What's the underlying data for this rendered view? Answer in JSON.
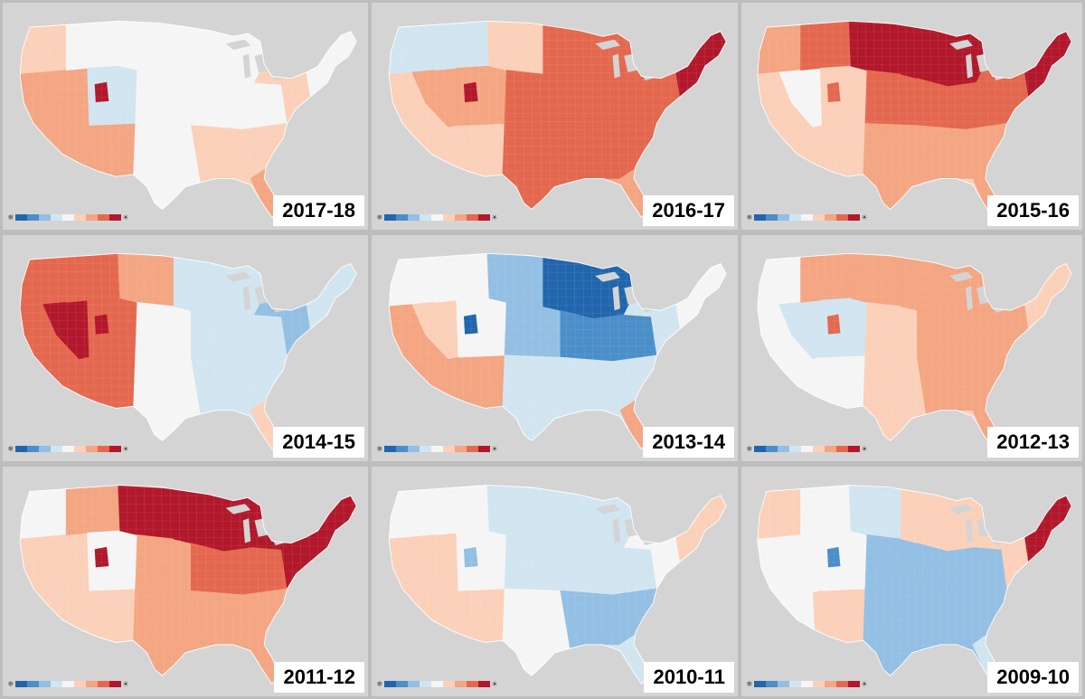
{
  "palette": {
    "B3": "#2166ac",
    "B2": "#4b8ec8",
    "B1": "#92bfe3",
    "B0": "#d1e5f0",
    "N": "#f5f5f5",
    "R0": "#fbd0b9",
    "R1": "#f4a582",
    "R2": "#e4684f",
    "R3": "#b2182b"
  },
  "legend_swatches": [
    "#2166ac",
    "#4b8ec8",
    "#92bfe3",
    "#d1e5f0",
    "#f5f5f5",
    "#fbd0b9",
    "#f4a582",
    "#e4684f",
    "#b2182b"
  ],
  "panels": [
    {
      "season": "2017-18",
      "base": "R0",
      "regions": {
        "pacific-nw": "R0",
        "california": "R1",
        "great-basin": "R1",
        "southwest": "R1",
        "northern-rockies": "N",
        "central-rockies": "B0",
        "northern-plains": "N",
        "central-plains": "N",
        "southern-plains": "N",
        "upper-midwest": "N",
        "ohio-valley": "N",
        "southeast": "R0",
        "florida": "R1",
        "mid-atlantic": "R0",
        "new-england": "N",
        "spot": "R3"
      }
    },
    {
      "season": "2016-17",
      "base": "R1",
      "regions": {
        "pacific-nw": "B0",
        "california": "R0",
        "great-basin": "R1",
        "southwest": "R0",
        "northern-rockies": "B0",
        "central-rockies": "R1",
        "northern-plains": "R0",
        "central-plains": "R2",
        "southern-plains": "R2",
        "upper-midwest": "R2",
        "ohio-valley": "R2",
        "southeast": "R2",
        "florida": "R1",
        "mid-atlantic": "R2",
        "new-england": "R3",
        "spot": "R3"
      }
    },
    {
      "season": "2015-16",
      "base": "R0",
      "regions": {
        "pacific-nw": "R1",
        "california": "R0",
        "great-basin": "N",
        "southwest": "R0",
        "northern-rockies": "R2",
        "central-rockies": "R0",
        "northern-plains": "R3",
        "central-plains": "R2",
        "southern-plains": "R1",
        "upper-midwest": "R3",
        "ohio-valley": "R2",
        "southeast": "R1",
        "florida": "R1",
        "mid-atlantic": "R2",
        "new-england": "R3",
        "spot": "R2"
      }
    },
    {
      "season": "2014-15",
      "base": "B0",
      "regions": {
        "pacific-nw": "R2",
        "california": "R2",
        "great-basin": "R3",
        "southwest": "R2",
        "northern-rockies": "R2",
        "central-rockies": "R2",
        "northern-plains": "R1",
        "central-plains": "N",
        "southern-plains": "N",
        "upper-midwest": "B0",
        "ohio-valley": "B0",
        "southeast": "B0",
        "florida": "R0",
        "mid-atlantic": "B1",
        "new-england": "B0",
        "spot": "R3"
      }
    },
    {
      "season": "2013-14",
      "base": "B0",
      "regions": {
        "pacific-nw": "N",
        "california": "R1",
        "great-basin": "R0",
        "southwest": "R1",
        "northern-rockies": "N",
        "central-rockies": "N",
        "northern-plains": "B1",
        "central-plains": "B1",
        "southern-plains": "B0",
        "upper-midwest": "B3",
        "ohio-valley": "B2",
        "southeast": "B0",
        "florida": "R1",
        "mid-atlantic": "B0",
        "new-england": "N",
        "spot": "B3"
      }
    },
    {
      "season": "2012-13",
      "base": "R0",
      "regions": {
        "pacific-nw": "N",
        "california": "N",
        "great-basin": "B0",
        "southwest": "N",
        "northern-rockies": "R1",
        "central-rockies": "B0",
        "northern-plains": "R1",
        "central-plains": "R0",
        "southern-plains": "R0",
        "upper-midwest": "R1",
        "ohio-valley": "R1",
        "southeast": "R1",
        "florida": "R1",
        "mid-atlantic": "R1",
        "new-england": "R0",
        "spot": "R2"
      }
    },
    {
      "season": "2011-12",
      "base": "R1",
      "regions": {
        "pacific-nw": "N",
        "california": "R0",
        "great-basin": "R0",
        "southwest": "R0",
        "northern-rockies": "R1",
        "central-rockies": "N",
        "northern-plains": "R3",
        "central-plains": "R1",
        "southern-plains": "R1",
        "upper-midwest": "R3",
        "ohio-valley": "R2",
        "southeast": "R1",
        "florida": "R1",
        "mid-atlantic": "R3",
        "new-england": "R3",
        "spot": "R3"
      }
    },
    {
      "season": "2010-11",
      "base": "B0",
      "regions": {
        "pacific-nw": "N",
        "california": "R0",
        "great-basin": "R0",
        "southwest": "R0",
        "northern-rockies": "N",
        "central-rockies": "N",
        "northern-plains": "B0",
        "central-plains": "B0",
        "southern-plains": "N",
        "upper-midwest": "B0",
        "ohio-valley": "B0",
        "southeast": "B1",
        "florida": "B0",
        "mid-atlantic": "N",
        "new-england": "R0",
        "spot": "B1"
      }
    },
    {
      "season": "2009-10",
      "base": "B1",
      "regions": {
        "pacific-nw": "R0",
        "california": "N",
        "great-basin": "N",
        "southwest": "R0",
        "northern-rockies": "N",
        "central-rockies": "N",
        "northern-plains": "B0",
        "central-plains": "B1",
        "southern-plains": "B1",
        "upper-midwest": "R0",
        "ohio-valley": "B1",
        "southeast": "B1",
        "florida": "B0",
        "mid-atlantic": "R0",
        "new-england": "R3",
        "spot": "B2"
      }
    }
  ]
}
